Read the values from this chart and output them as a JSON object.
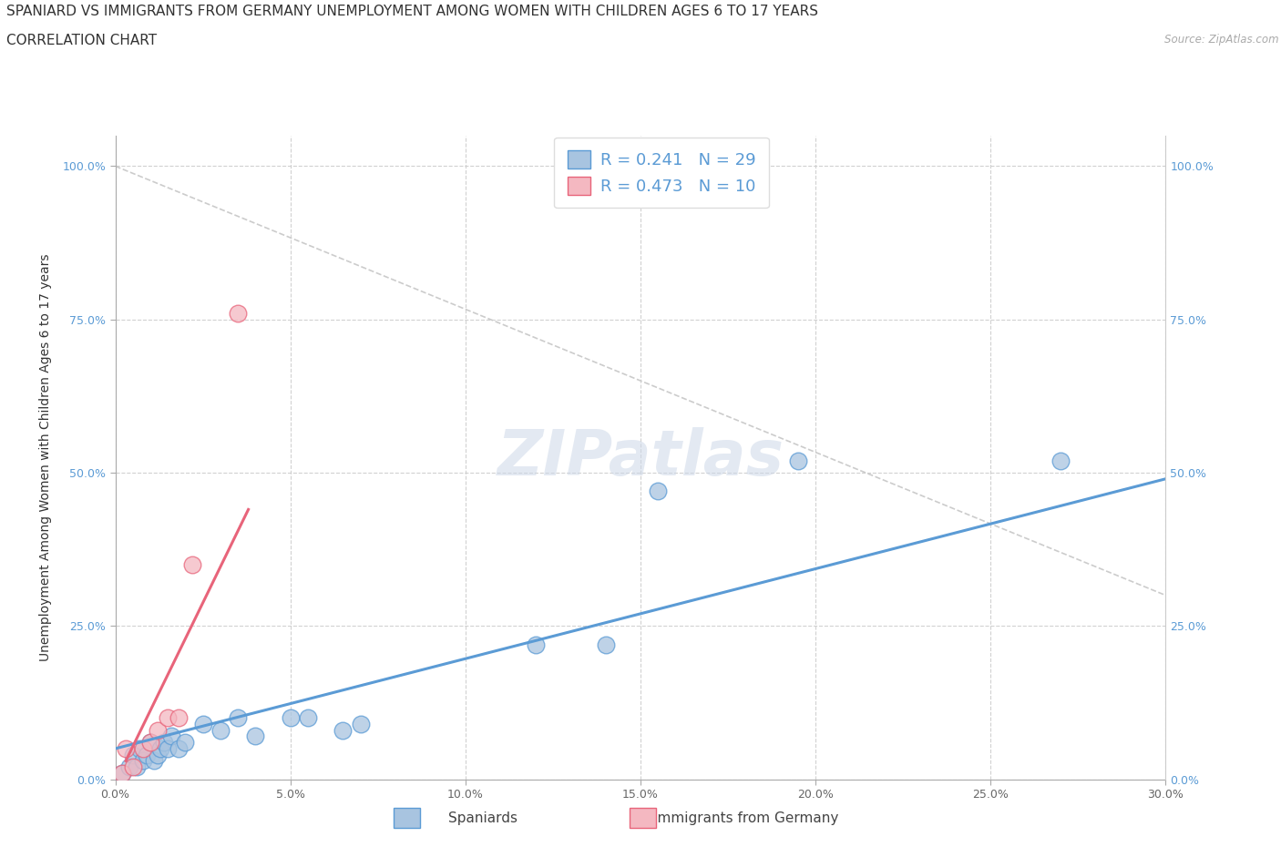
{
  "title": "SPANIARD VS IMMIGRANTS FROM GERMANY UNEMPLOYMENT AMONG WOMEN WITH CHILDREN AGES 6 TO 17 YEARS",
  "subtitle": "CORRELATION CHART",
  "source": "Source: ZipAtlas.com",
  "ylabel": "Unemployment Among Women with Children Ages 6 to 17 years",
  "xlim": [
    0.0,
    0.3
  ],
  "ylim": [
    0.0,
    1.05
  ],
  "xtick_labels": [
    "0.0%",
    "5.0%",
    "10.0%",
    "15.0%",
    "20.0%",
    "25.0%",
    "30.0%"
  ],
  "xtick_values": [
    0.0,
    0.05,
    0.1,
    0.15,
    0.2,
    0.25,
    0.3
  ],
  "ytick_labels": [
    "0.0%",
    "25.0%",
    "50.0%",
    "75.0%",
    "100.0%"
  ],
  "ytick_values": [
    0.0,
    0.25,
    0.5,
    0.75,
    1.0
  ],
  "spaniard_R": 0.241,
  "spaniard_N": 29,
  "immigrant_R": 0.473,
  "immigrant_N": 10,
  "spaniard_color": "#a8c4e0",
  "immigrant_color": "#f4b8c1",
  "spaniard_line_color": "#5b9bd5",
  "immigrant_line_color": "#e8647a",
  "spaniard_scatter": [
    [
      0.002,
      0.01
    ],
    [
      0.004,
      0.02
    ],
    [
      0.005,
      0.04
    ],
    [
      0.006,
      0.02
    ],
    [
      0.007,
      0.05
    ],
    [
      0.008,
      0.03
    ],
    [
      0.009,
      0.04
    ],
    [
      0.01,
      0.06
    ],
    [
      0.011,
      0.03
    ],
    [
      0.012,
      0.04
    ],
    [
      0.013,
      0.05
    ],
    [
      0.014,
      0.06
    ],
    [
      0.015,
      0.05
    ],
    [
      0.016,
      0.07
    ],
    [
      0.018,
      0.05
    ],
    [
      0.02,
      0.06
    ],
    [
      0.025,
      0.09
    ],
    [
      0.03,
      0.08
    ],
    [
      0.035,
      0.1
    ],
    [
      0.04,
      0.07
    ],
    [
      0.05,
      0.1
    ],
    [
      0.055,
      0.1
    ],
    [
      0.065,
      0.08
    ],
    [
      0.07,
      0.09
    ],
    [
      0.12,
      0.22
    ],
    [
      0.14,
      0.22
    ],
    [
      0.155,
      0.47
    ],
    [
      0.195,
      0.52
    ],
    [
      0.27,
      0.52
    ]
  ],
  "immigrant_scatter": [
    [
      0.002,
      0.01
    ],
    [
      0.003,
      0.05
    ],
    [
      0.005,
      0.02
    ],
    [
      0.008,
      0.05
    ],
    [
      0.01,
      0.06
    ],
    [
      0.012,
      0.08
    ],
    [
      0.015,
      0.1
    ],
    [
      0.018,
      0.1
    ],
    [
      0.022,
      0.35
    ],
    [
      0.035,
      0.76
    ]
  ],
  "spaniard_line": [
    [
      0.0,
      0.05
    ],
    [
      0.3,
      0.49
    ]
  ],
  "immigrant_line": [
    [
      0.003,
      0.03
    ],
    [
      0.038,
      0.44
    ]
  ],
  "diagonal_line": [
    [
      0.0,
      1.0
    ],
    [
      0.3,
      0.3
    ]
  ],
  "watermark": "ZIPatlas",
  "background_color": "#ffffff",
  "grid_color": "#cccccc",
  "title_fontsize": 11,
  "subtitle_fontsize": 11,
  "axis_label_fontsize": 10,
  "tick_fontsize": 9,
  "legend_fontsize": 13
}
